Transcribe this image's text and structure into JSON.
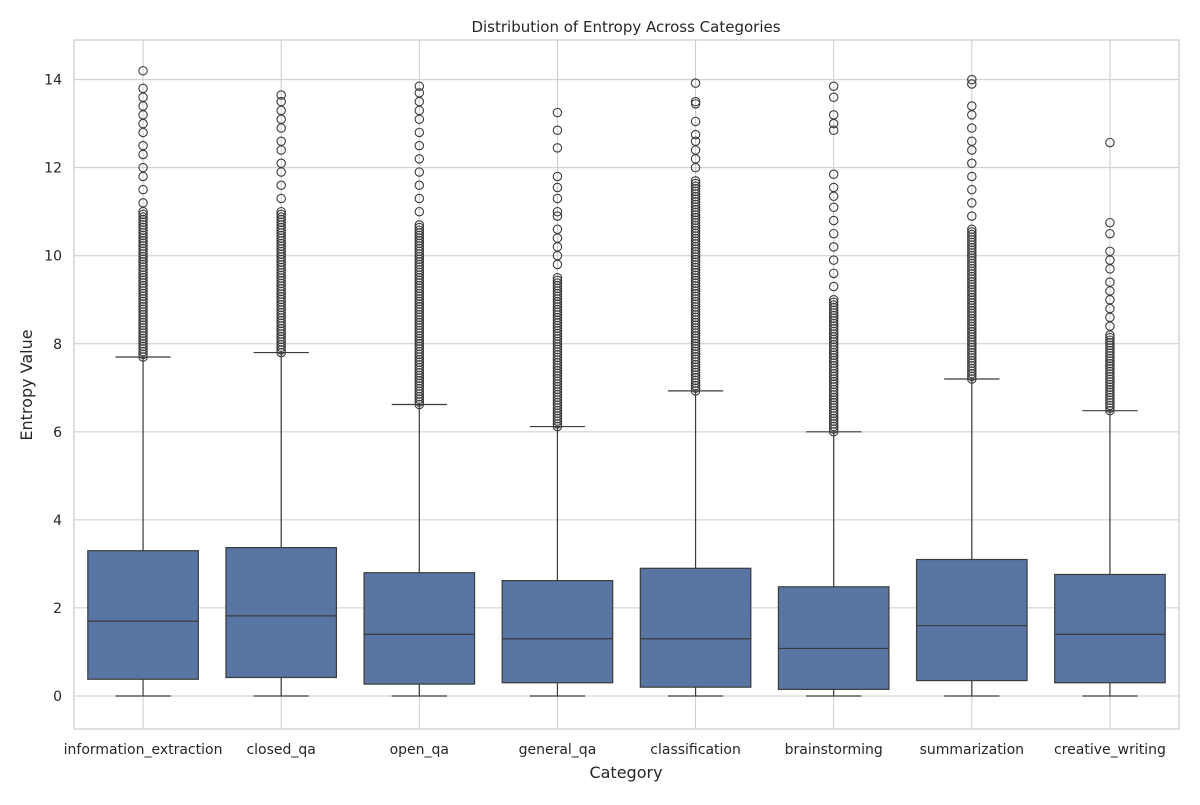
{
  "chart_data": {
    "type": "box",
    "title": "Distribution of Entropy Across Categories",
    "xlabel": "Category",
    "ylabel": "Entropy Value",
    "ylim": [
      -0.75,
      14.9
    ],
    "yticks": [
      0,
      2,
      4,
      6,
      8,
      10,
      12,
      14
    ],
    "grid": true,
    "box_color": "#5875a4",
    "line_color": "#3b3b3b",
    "categories": [
      "information_extraction",
      "closed_qa",
      "open_qa",
      "general_qa",
      "classification",
      "brainstorming",
      "summarization",
      "creative_writing"
    ],
    "boxes": [
      {
        "category": "information_extraction",
        "whisker_low": 0.0,
        "q1": 0.38,
        "median": 1.7,
        "q3": 3.3,
        "whisker_high": 7.7,
        "outlier_dense_range": [
          7.7,
          11.0
        ],
        "outliers_sparse": [
          11.2,
          11.5,
          11.8,
          12.0,
          12.3,
          12.5,
          12.8,
          13.0,
          13.2,
          13.4,
          13.6,
          13.8,
          14.2
        ]
      },
      {
        "category": "closed_qa",
        "whisker_low": 0.0,
        "q1": 0.42,
        "median": 1.82,
        "q3": 3.37,
        "whisker_high": 7.8,
        "outlier_dense_range": [
          7.8,
          11.0
        ],
        "outliers_sparse": [
          11.3,
          11.6,
          11.9,
          12.1,
          12.4,
          12.6,
          12.9,
          13.1,
          13.3,
          13.5,
          13.65
        ]
      },
      {
        "category": "open_qa",
        "whisker_low": 0.0,
        "q1": 0.27,
        "median": 1.4,
        "q3": 2.8,
        "whisker_high": 6.62,
        "outlier_dense_range": [
          6.62,
          10.7
        ],
        "outliers_sparse": [
          11.0,
          11.3,
          11.6,
          11.9,
          12.2,
          12.5,
          12.8,
          13.1,
          13.3,
          13.5,
          13.7,
          13.85
        ]
      },
      {
        "category": "general_qa",
        "whisker_low": 0.0,
        "q1": 0.3,
        "median": 1.3,
        "q3": 2.62,
        "whisker_high": 6.12,
        "outlier_dense_range": [
          6.12,
          9.5
        ],
        "outliers_sparse": [
          9.8,
          10.0,
          10.2,
          10.4,
          10.6,
          10.9,
          11.0,
          11.3,
          11.55,
          11.8,
          12.45,
          12.85,
          13.25
        ]
      },
      {
        "category": "classification",
        "whisker_low": 0.0,
        "q1": 0.2,
        "median": 1.3,
        "q3": 2.9,
        "whisker_high": 6.93,
        "outlier_dense_range": [
          6.93,
          11.7
        ],
        "outliers_sparse": [
          12.0,
          12.2,
          12.4,
          12.6,
          12.75,
          13.05,
          13.45,
          13.5,
          13.92
        ]
      },
      {
        "category": "brainstorming",
        "whisker_low": 0.0,
        "q1": 0.15,
        "median": 1.08,
        "q3": 2.48,
        "whisker_high": 6.0,
        "outlier_dense_range": [
          6.0,
          9.0
        ],
        "outliers_sparse": [
          9.3,
          9.6,
          9.9,
          10.2,
          10.5,
          10.8,
          11.1,
          11.35,
          11.55,
          11.85,
          12.85,
          13.0,
          13.2,
          13.6,
          13.85
        ]
      },
      {
        "category": "summarization",
        "whisker_low": 0.0,
        "q1": 0.35,
        "median": 1.6,
        "q3": 3.1,
        "whisker_high": 7.2,
        "outlier_dense_range": [
          7.2,
          10.6
        ],
        "outliers_sparse": [
          10.9,
          11.2,
          11.5,
          11.8,
          12.1,
          12.4,
          12.6,
          12.9,
          13.2,
          13.4,
          13.9,
          14.0
        ]
      },
      {
        "category": "creative_writing",
        "whisker_low": 0.0,
        "q1": 0.3,
        "median": 1.4,
        "q3": 2.76,
        "whisker_high": 6.48,
        "outlier_dense_range": [
          6.48,
          8.2
        ],
        "outliers_sparse": [
          8.4,
          8.6,
          8.8,
          9.0,
          9.2,
          9.4,
          9.7,
          9.9,
          10.1,
          10.5,
          10.75,
          12.57
        ]
      }
    ]
  }
}
